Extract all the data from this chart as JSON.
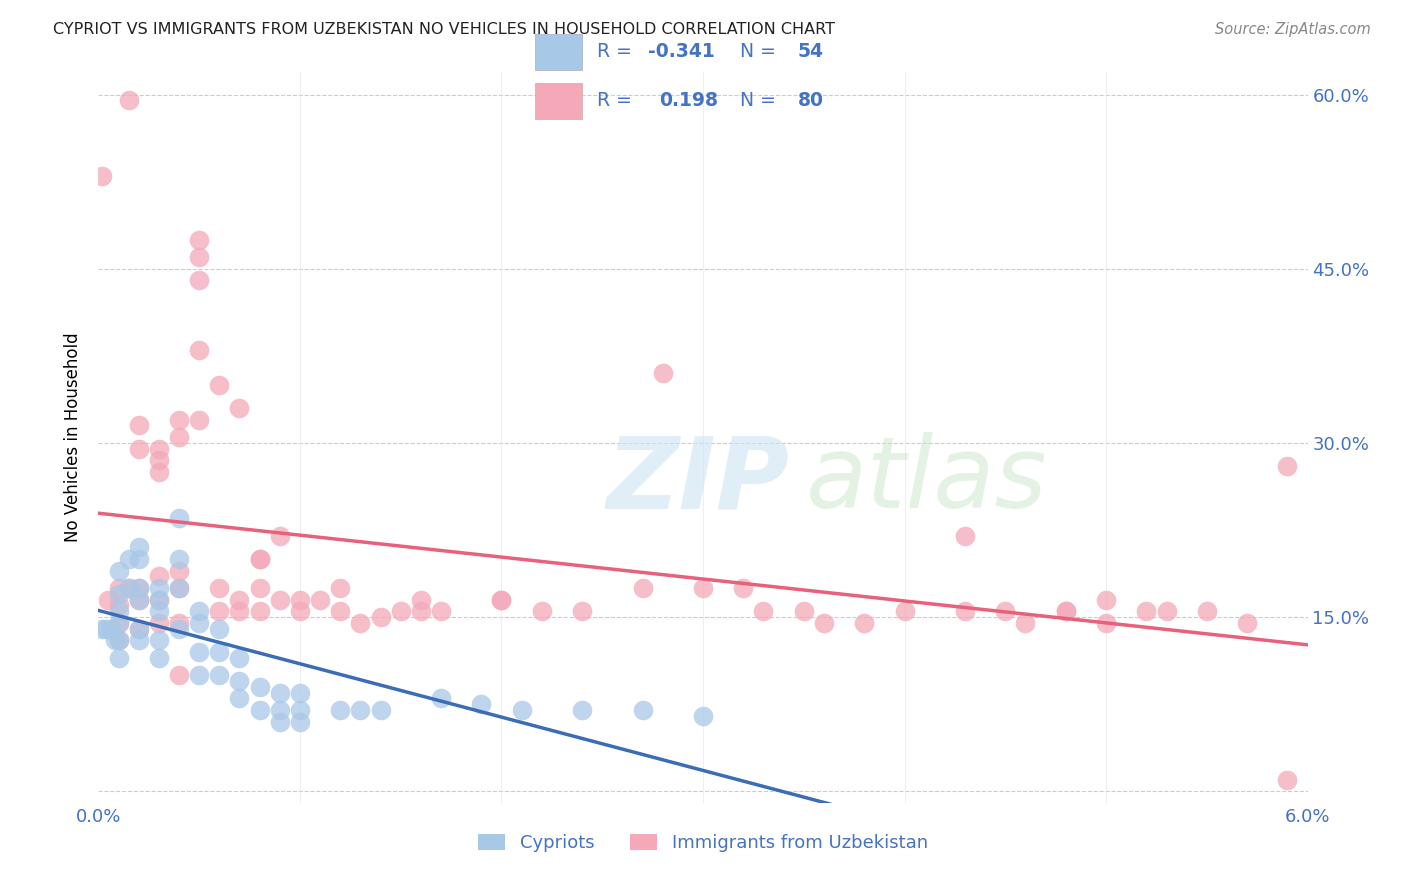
{
  "title": "CYPRIOT VS IMMIGRANTS FROM UZBEKISTAN NO VEHICLES IN HOUSEHOLD CORRELATION CHART",
  "source": "Source: ZipAtlas.com",
  "ylabel_label": "No Vehicles in Household",
  "xmin": 0.0,
  "xmax": 0.06,
  "ymin": -0.01,
  "ymax": 0.62,
  "color_blue": "#a8c8e8",
  "color_pink": "#f4a8b8",
  "color_blue_line": "#3a6db5",
  "color_pink_line": "#e8607a",
  "color_text_blue": "#4472c4",
  "blue_x": [
    0.0002,
    0.0004,
    0.0006,
    0.0008,
    0.001,
    0.001,
    0.001,
    0.001,
    0.001,
    0.001,
    0.0015,
    0.0015,
    0.002,
    0.002,
    0.002,
    0.002,
    0.002,
    0.002,
    0.003,
    0.003,
    0.003,
    0.003,
    0.003,
    0.004,
    0.004,
    0.004,
    0.004,
    0.005,
    0.005,
    0.005,
    0.005,
    0.006,
    0.006,
    0.006,
    0.007,
    0.007,
    0.007,
    0.008,
    0.008,
    0.009,
    0.009,
    0.009,
    0.01,
    0.01,
    0.01,
    0.012,
    0.013,
    0.014,
    0.017,
    0.019,
    0.021,
    0.024,
    0.027,
    0.03
  ],
  "blue_y": [
    0.14,
    0.14,
    0.14,
    0.13,
    0.19,
    0.17,
    0.155,
    0.145,
    0.13,
    0.115,
    0.2,
    0.175,
    0.21,
    0.2,
    0.175,
    0.165,
    0.14,
    0.13,
    0.175,
    0.165,
    0.155,
    0.13,
    0.115,
    0.235,
    0.2,
    0.175,
    0.14,
    0.155,
    0.145,
    0.12,
    0.1,
    0.14,
    0.12,
    0.1,
    0.115,
    0.095,
    0.08,
    0.09,
    0.07,
    0.085,
    0.07,
    0.06,
    0.085,
    0.07,
    0.06,
    0.07,
    0.07,
    0.07,
    0.08,
    0.075,
    0.07,
    0.07,
    0.07,
    0.065
  ],
  "pink_x": [
    0.0002,
    0.0005,
    0.001,
    0.001,
    0.001,
    0.001,
    0.0015,
    0.0015,
    0.002,
    0.002,
    0.002,
    0.002,
    0.002,
    0.003,
    0.003,
    0.003,
    0.003,
    0.003,
    0.003,
    0.004,
    0.004,
    0.004,
    0.004,
    0.004,
    0.004,
    0.005,
    0.005,
    0.005,
    0.005,
    0.006,
    0.006,
    0.006,
    0.007,
    0.007,
    0.007,
    0.008,
    0.008,
    0.008,
    0.009,
    0.009,
    0.01,
    0.01,
    0.011,
    0.012,
    0.013,
    0.014,
    0.015,
    0.016,
    0.017,
    0.02,
    0.022,
    0.024,
    0.027,
    0.03,
    0.033,
    0.036,
    0.04,
    0.043,
    0.046,
    0.048,
    0.05,
    0.053,
    0.055,
    0.057,
    0.059,
    0.059,
    0.043,
    0.045,
    0.048,
    0.05,
    0.052,
    0.028,
    0.032,
    0.035,
    0.038,
    0.005,
    0.008,
    0.012,
    0.016,
    0.02
  ],
  "pink_y": [
    0.53,
    0.165,
    0.175,
    0.16,
    0.145,
    0.13,
    0.595,
    0.175,
    0.315,
    0.295,
    0.175,
    0.165,
    0.14,
    0.295,
    0.285,
    0.275,
    0.185,
    0.165,
    0.145,
    0.32,
    0.305,
    0.19,
    0.175,
    0.145,
    0.1,
    0.475,
    0.46,
    0.44,
    0.38,
    0.35,
    0.175,
    0.155,
    0.33,
    0.165,
    0.155,
    0.2,
    0.175,
    0.155,
    0.22,
    0.165,
    0.165,
    0.155,
    0.165,
    0.155,
    0.145,
    0.15,
    0.155,
    0.165,
    0.155,
    0.165,
    0.155,
    0.155,
    0.175,
    0.175,
    0.155,
    0.145,
    0.155,
    0.155,
    0.145,
    0.155,
    0.145,
    0.155,
    0.155,
    0.145,
    0.28,
    0.01,
    0.22,
    0.155,
    0.155,
    0.165,
    0.155,
    0.36,
    0.175,
    0.155,
    0.145,
    0.32,
    0.2,
    0.175,
    0.155,
    0.165
  ]
}
